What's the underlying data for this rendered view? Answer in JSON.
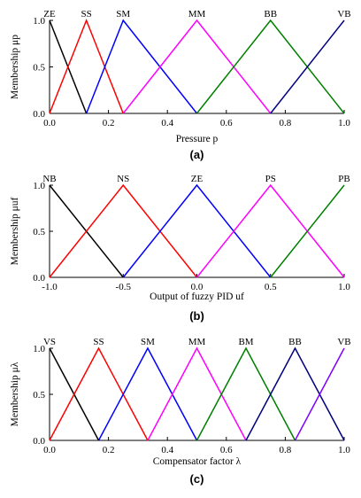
{
  "colors": {
    "black": "#000000",
    "red": "#ff0000",
    "blue": "#0000ff",
    "magenta": "#ff00ff",
    "green": "#008000",
    "navy": "#000080",
    "purple": "#8000ff"
  },
  "chart_data": [
    {
      "type": "line",
      "panel": "(a)",
      "title": "",
      "xlabel": "Pressure p",
      "ylabel": "Membership μp",
      "xlim": [
        0.0,
        1.0
      ],
      "ylim": [
        0.0,
        1.0
      ],
      "xticks": [
        "0.0",
        "0.2",
        "0.4",
        "0.6",
        "0.8",
        "1.0"
      ],
      "xtick_values": [
        0.0,
        0.2,
        0.4,
        0.6,
        0.8,
        1.0
      ],
      "yticks": [
        "0.0",
        "0.5",
        "1.0"
      ],
      "ytick_values": [
        0.0,
        0.5,
        1.0
      ],
      "grid": false,
      "series": [
        {
          "name": "ZE",
          "color": "#000000",
          "x": [
            0.0,
            0.125
          ],
          "y": [
            1,
            0
          ]
        },
        {
          "name": "SS",
          "color": "#ff0000",
          "x": [
            0.0,
            0.125,
            0.25
          ],
          "y": [
            0,
            1,
            0
          ]
        },
        {
          "name": "SM",
          "color": "#0000ff",
          "x": [
            0.125,
            0.25,
            0.5
          ],
          "y": [
            0,
            1,
            0
          ]
        },
        {
          "name": "MM",
          "color": "#ff00ff",
          "x": [
            0.25,
            0.5,
            0.75
          ],
          "y": [
            0,
            1,
            0
          ]
        },
        {
          "name": "BB",
          "color": "#008000",
          "x": [
            0.5,
            0.75,
            1.0
          ],
          "y": [
            0,
            1,
            0
          ]
        },
        {
          "name": "VB",
          "color": "#000080",
          "x": [
            0.75,
            1.0
          ],
          "y": [
            0,
            1
          ]
        }
      ]
    },
    {
      "type": "line",
      "panel": "(b)",
      "title": "",
      "xlabel": "Output of fuzzy PID uf",
      "ylabel": "Membership μuf",
      "xlim": [
        -1.0,
        1.0
      ],
      "ylim": [
        0.0,
        1.0
      ],
      "xticks": [
        "-1.0",
        "-0.5",
        "0.0",
        "0.5",
        "1.0"
      ],
      "xtick_values": [
        -1.0,
        -0.5,
        0.0,
        0.5,
        1.0
      ],
      "yticks": [
        "0.0",
        "0.5",
        "1.0"
      ],
      "ytick_values": [
        0.0,
        0.5,
        1.0
      ],
      "grid": false,
      "series": [
        {
          "name": "NB",
          "color": "#000000",
          "x": [
            -1.0,
            -0.5
          ],
          "y": [
            1,
            0
          ]
        },
        {
          "name": "NS",
          "color": "#ff0000",
          "x": [
            -1.0,
            -0.5,
            0.0
          ],
          "y": [
            0,
            1,
            0
          ]
        },
        {
          "name": "ZE",
          "color": "#0000ff",
          "x": [
            -0.5,
            0.0,
            0.5
          ],
          "y": [
            0,
            1,
            0
          ]
        },
        {
          "name": "PS",
          "color": "#ff00ff",
          "x": [
            0.0,
            0.5,
            1.0
          ],
          "y": [
            0,
            1,
            0
          ]
        },
        {
          "name": "PB",
          "color": "#008000",
          "x": [
            0.5,
            1.0
          ],
          "y": [
            0,
            1
          ]
        }
      ]
    },
    {
      "type": "line",
      "panel": "(c)",
      "title": "",
      "xlabel": "Compensator factor λ",
      "ylabel": "Membership μλ",
      "xlim": [
        0.0,
        1.0
      ],
      "ylim": [
        0.0,
        1.0
      ],
      "xticks": [
        "0.0",
        "0.2",
        "0.4",
        "0.6",
        "0.8",
        "1.0"
      ],
      "xtick_values": [
        0.0,
        0.2,
        0.4,
        0.6,
        0.8,
        1.0
      ],
      "yticks": [
        "0.0",
        "0.5",
        "1.0"
      ],
      "ytick_values": [
        0.0,
        0.5,
        1.0
      ],
      "grid": false,
      "series": [
        {
          "name": "VS",
          "color": "#000000",
          "x": [
            0.0,
            0.1667
          ],
          "y": [
            1,
            0
          ]
        },
        {
          "name": "SS",
          "color": "#ff0000",
          "x": [
            0.0,
            0.1667,
            0.3333
          ],
          "y": [
            0,
            1,
            0
          ]
        },
        {
          "name": "SM",
          "color": "#0000ff",
          "x": [
            0.1667,
            0.3333,
            0.5
          ],
          "y": [
            0,
            1,
            0
          ]
        },
        {
          "name": "MM",
          "color": "#ff00ff",
          "x": [
            0.3333,
            0.5,
            0.6667
          ],
          "y": [
            0,
            1,
            0
          ]
        },
        {
          "name": "BM",
          "color": "#008000",
          "x": [
            0.5,
            0.6667,
            0.8333
          ],
          "y": [
            0,
            1,
            0
          ]
        },
        {
          "name": "BB",
          "color": "#000080",
          "x": [
            0.6667,
            0.8333,
            1.0
          ],
          "y": [
            0,
            1,
            0
          ]
        },
        {
          "name": "VB",
          "color": "#8000ff",
          "x": [
            0.8333,
            1.0
          ],
          "y": [
            0,
            1
          ]
        }
      ]
    }
  ]
}
